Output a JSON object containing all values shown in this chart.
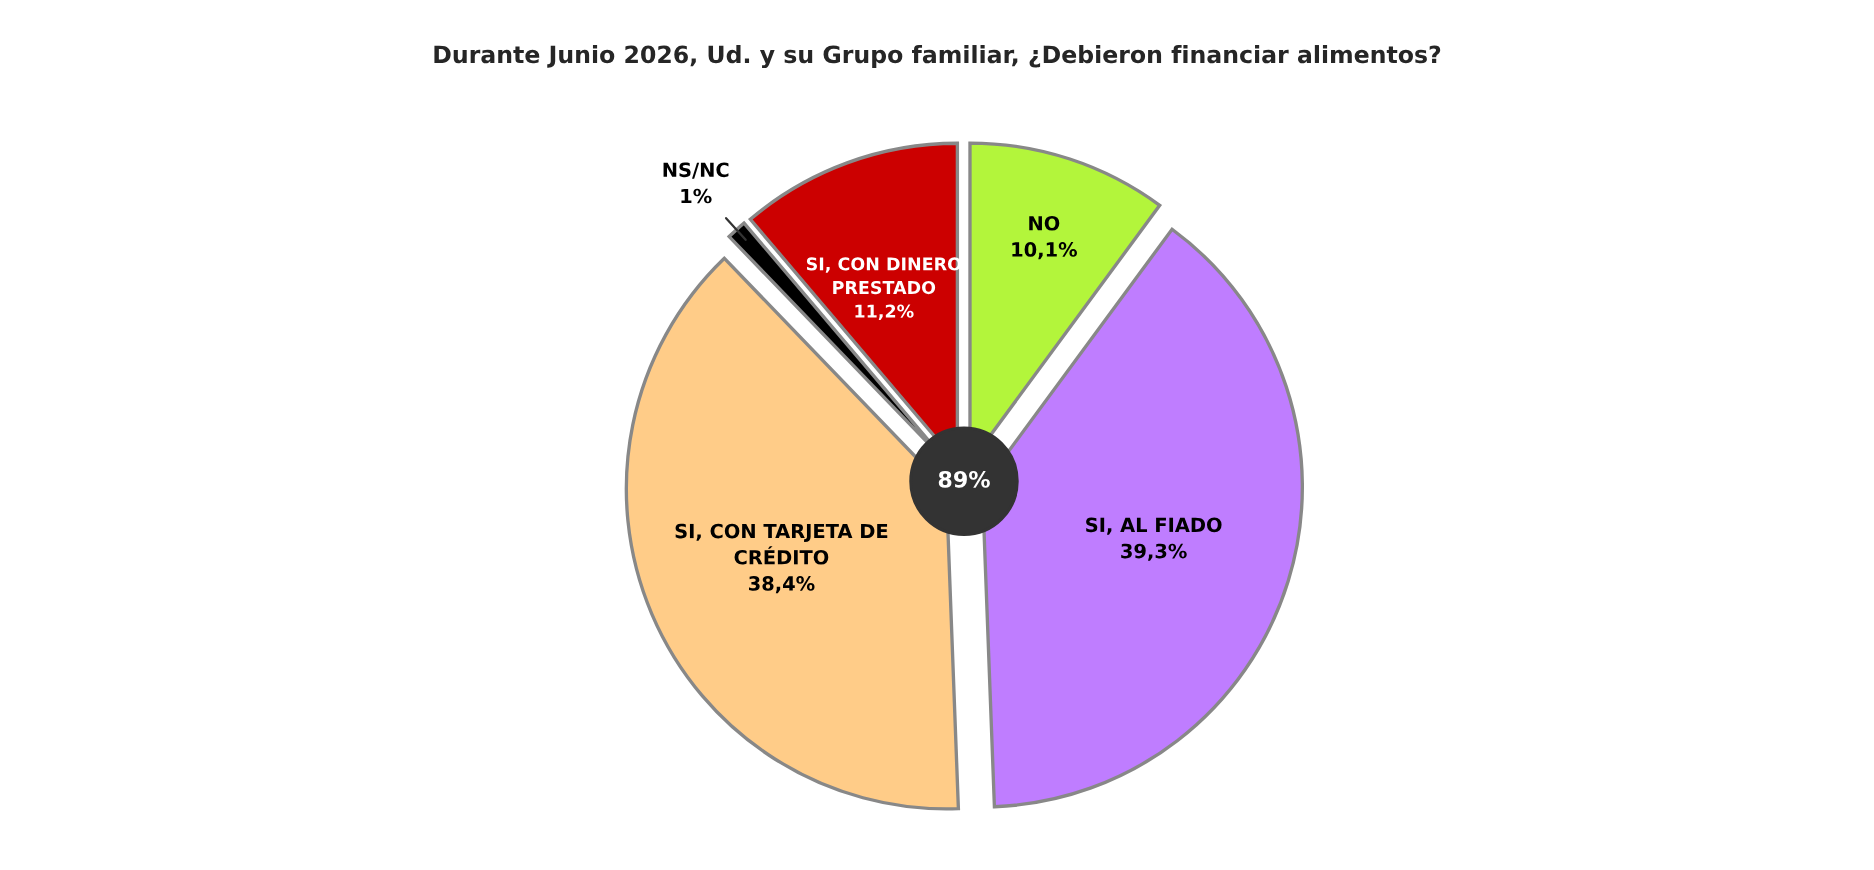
{
  "chart_data": {
    "type": "pie",
    "title": "Durante Junio 2026, Ud. y su Grupo familiar, ¿Debieron financiar alimentos?",
    "categories": [
      "SI, CON DINERO\nPRESTADO",
      "NS/NC",
      "SI, CON TARJETA DE\nCRÉDITO",
      "SI, AL FIADO",
      "NO"
    ],
    "values": [
      11.2,
      1,
      38.4,
      39.3,
      10.1
    ],
    "value_labels": [
      "11,2%",
      "1%",
      "38,4%",
      "39,3%",
      "10,1%"
    ],
    "colors": [
      "#cc0000",
      "#000000",
      "#ffcc88",
      "#bf7dff",
      "#b3f53b"
    ],
    "annotations": [
      "89%"
    ],
    "legend": false
  }
}
